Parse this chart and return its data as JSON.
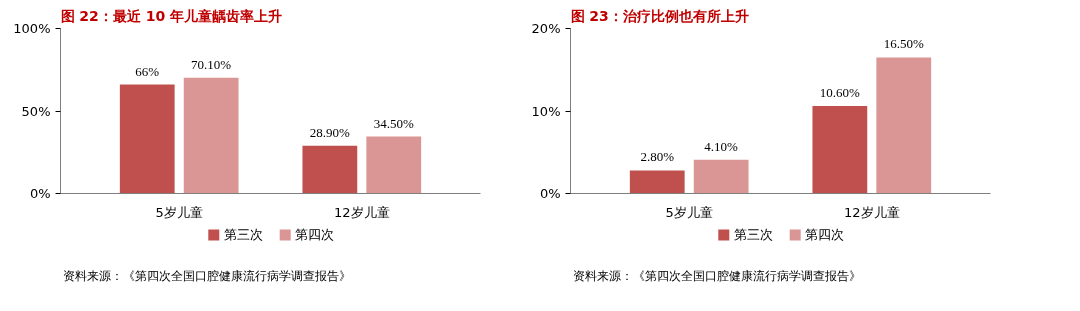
{
  "chart_data": [
    {
      "type": "bar",
      "title": "图 22：最近 10 年儿童龋齿率上升",
      "categories": [
        "5岁儿童",
        "12岁儿童"
      ],
      "series": [
        {
          "name": "第三次",
          "color": "#c0504d",
          "values": [
            66,
            28.9
          ],
          "value_labels": [
            "66%",
            "28.90%"
          ]
        },
        {
          "name": "第四次",
          "color": "#d99694",
          "values": [
            70.1,
            34.5
          ],
          "value_labels": [
            "70.10%",
            "34.50%"
          ]
        }
      ],
      "ylim": [
        0,
        100
      ],
      "yticks": [
        {
          "value": 0,
          "label": "0%"
        },
        {
          "value": 50,
          "label": "50%"
        },
        {
          "value": 100,
          "label": "100%"
        }
      ],
      "grid": false,
      "legend": "bottom",
      "annotations": [
        "资料来源：《第四次全国口腔健康流行病学调查报告》"
      ]
    },
    {
      "type": "bar",
      "title": "图 23：治疗比例也有所上升",
      "categories": [
        "5岁儿童",
        "12岁儿童"
      ],
      "series": [
        {
          "name": "第三次",
          "color": "#c0504d",
          "values": [
            2.8,
            10.6
          ],
          "value_labels": [
            "2.80%",
            "10.60%"
          ]
        },
        {
          "name": "第四次",
          "color": "#d99694",
          "values": [
            4.1,
            16.5
          ],
          "value_labels": [
            "4.10%",
            "16.50%"
          ]
        }
      ],
      "ylim": [
        0,
        20
      ],
      "yticks": [
        {
          "value": 0,
          "label": "0%"
        },
        {
          "value": 10,
          "label": "10%"
        },
        {
          "value": 20,
          "label": "20%"
        }
      ],
      "grid": false,
      "legend": "bottom",
      "annotations": [
        "资料来源：《第四次全国口腔健康流行病学调查报告》"
      ]
    }
  ]
}
